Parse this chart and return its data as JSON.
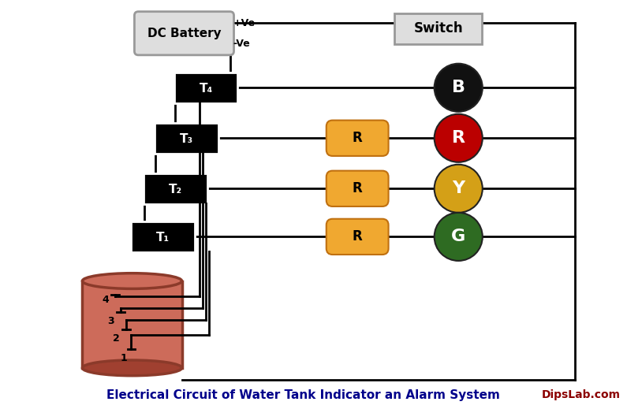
{
  "title": "Electrical Circuit of Water Tank Indicator an Alarm System",
  "title_color": "#00008B",
  "watermark": "DipsLab.com",
  "watermark_color": "#8B0000",
  "bg_color": "#FFFFFF",
  "battery_label": "DC Battery",
  "switch_label": "Switch",
  "transistors": [
    "T₄",
    "T₃",
    "T₂",
    "T₁"
  ],
  "resistor_label": "R",
  "led_labels": [
    "B",
    "R",
    "Y",
    "G"
  ],
  "led_colors": [
    "#111111",
    "#BB0000",
    "#D4A017",
    "#2E6B22"
  ],
  "led_text_colors": [
    "#FFFFFF",
    "#FFFFFF",
    "#FFFFFF",
    "#FFFFFF"
  ],
  "resistor_face": "#F0A830",
  "resistor_edge": "#C07010",
  "tank_color_face": "#CD6B5A",
  "tank_color_edge": "#8B3A2A",
  "tank_color_bottom": "#A04030",
  "tank_levels": [
    "4",
    "3",
    "2",
    "1"
  ],
  "plus_ve": "+Ve",
  "minus_ve": "-Ve",
  "wire_color": "#000000",
  "lw": 2.0
}
